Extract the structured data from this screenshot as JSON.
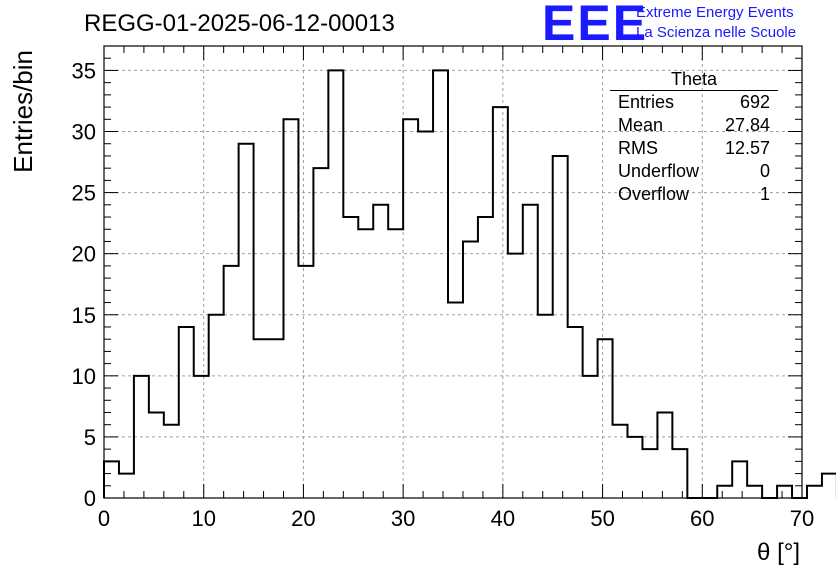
{
  "header": {
    "title": "REGG-01-2025-06-12-00013",
    "logo": "EEE",
    "brand_line1": "Extreme Energy Events",
    "brand_line2": "La Scienza nelle Scuole"
  },
  "stats": {
    "title": "Theta",
    "rows": [
      {
        "label": "Entries",
        "value": "692"
      },
      {
        "label": "Mean",
        "value": "27.84"
      },
      {
        "label": "RMS",
        "value": "12.57"
      },
      {
        "label": "Underflow",
        "value": "0"
      },
      {
        "label": "Overflow",
        "value": "1"
      }
    ]
  },
  "chart_data": {
    "type": "bar",
    "histogram": true,
    "title": "REGG-01-2025-06-12-00013",
    "xlabel": "θ [°]",
    "ylabel": "Entries/bin",
    "xlim": [
      0,
      70
    ],
    "ylim": [
      0,
      37
    ],
    "x_ticks": [
      0,
      10,
      20,
      30,
      40,
      50,
      60,
      70
    ],
    "y_ticks": [
      0,
      5,
      10,
      15,
      20,
      25,
      30,
      35
    ],
    "grid": true,
    "bin_width": 1.5,
    "bin_edges_start": 0,
    "values": [
      3,
      2,
      10,
      7,
      6,
      14,
      10,
      15,
      19,
      29,
      13,
      13,
      31,
      19,
      27,
      35,
      23,
      22,
      24,
      22,
      31,
      30,
      35,
      16,
      21,
      23,
      32,
      20,
      24,
      15,
      28,
      14,
      10,
      13,
      6,
      5,
      4,
      7,
      4,
      0,
      0,
      1,
      3,
      1,
      0,
      1,
      0,
      1,
      2,
      0
    ],
    "colors": {
      "line": "#000000",
      "grid": "#a0a0a0",
      "logo": "#1a1aff"
    }
  }
}
